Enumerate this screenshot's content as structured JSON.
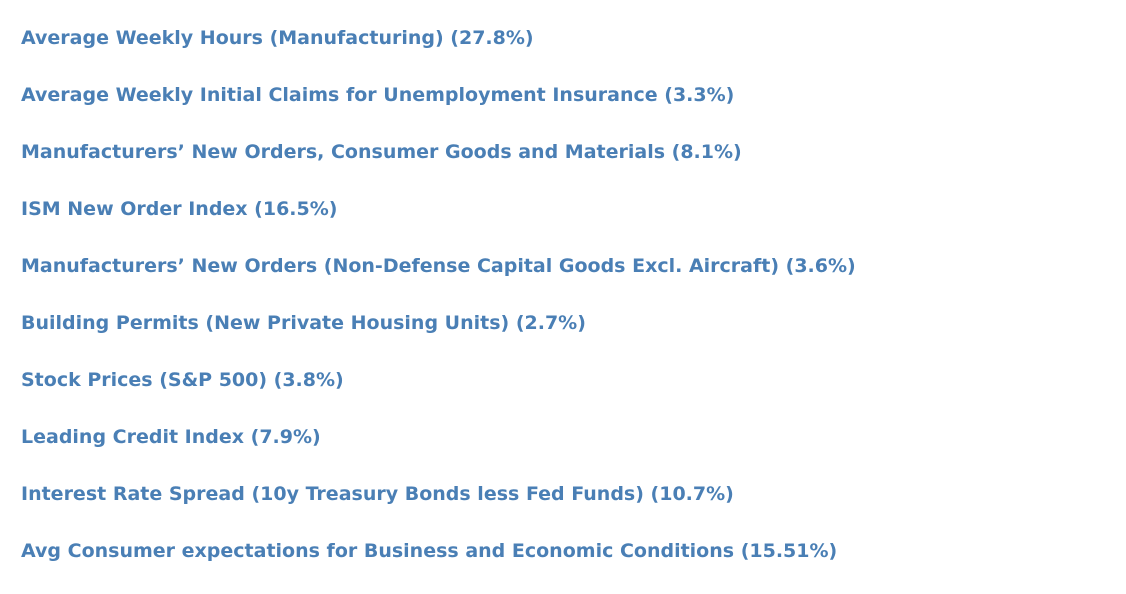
{
  "indicators": [
    {
      "label": "Average Weekly Hours (Manufacturing) (27.8%)"
    },
    {
      "label": "Average Weekly Initial Claims for Unemployment Insurance (3.3%)"
    },
    {
      "label": "Manufacturers’ New Orders, Consumer Goods and Materials (8.1%)"
    },
    {
      "label": "ISM New Order Index (16.5%)"
    },
    {
      "label": "Manufacturers’ New Orders (Non-Defense Capital Goods Excl. Aircraft) (3.6%)"
    },
    {
      "label": "Building Permits (New Private Housing Units) (2.7%)"
    },
    {
      "label": "Stock Prices (S&P 500) (3.8%)"
    },
    {
      "label": "Leading Credit Index (7.9%)"
    },
    {
      "label": "Interest Rate Spread (10y Treasury Bonds less Fed Funds) (10.7%)"
    },
    {
      "label": "Avg Consumer expectations for Business and Economic Conditions (15.51%)"
    }
  ],
  "colors": {
    "link": "#4a7fb5",
    "background": "#ffffff"
  }
}
